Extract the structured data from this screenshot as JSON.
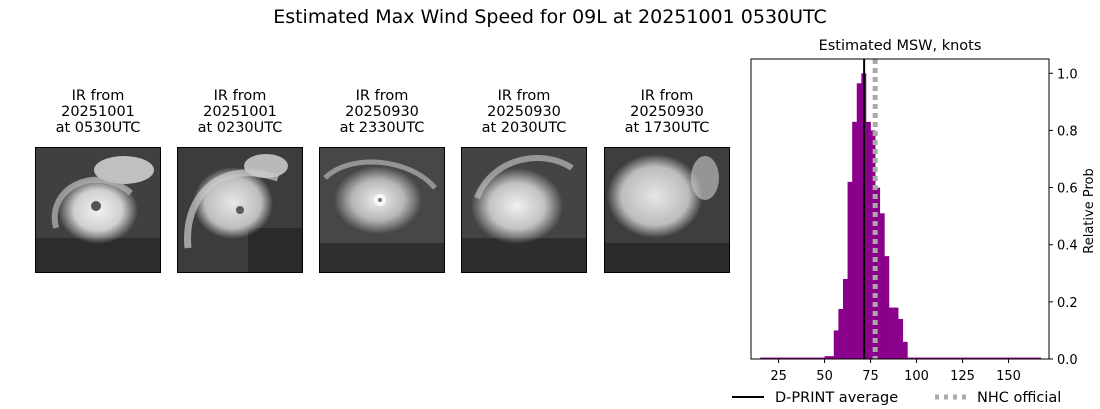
{
  "suptitle": "Estimated Max Wind Speed for 09L at 20251001 0530UTC",
  "ir_panels": [
    {
      "line1": "IR from",
      "line2": "20251001",
      "line3": "at 0530UTC"
    },
    {
      "line1": "IR from",
      "line2": "20251001",
      "line3": "at 0230UTC"
    },
    {
      "line1": "IR from",
      "line2": "20250930",
      "line3": "at 2330UTC"
    },
    {
      "line1": "IR from",
      "line2": "20250930",
      "line3": "at 2030UTC"
    },
    {
      "line1": "IR from",
      "line2": "20250930",
      "line3": "at 1730UTC"
    }
  ],
  "chart_data": {
    "type": "bar",
    "title": "Estimated MSW, knots",
    "xlabel": "",
    "ylabel": "Relative Prob",
    "xlim": [
      10,
      172
    ],
    "ylim": [
      0,
      1.05
    ],
    "xticks": [
      25,
      50,
      75,
      100,
      125,
      150
    ],
    "yticks": [
      "0.0",
      "0.2",
      "0.4",
      "0.6",
      "0.8",
      "1.0"
    ],
    "bin_width": 2.5,
    "bins": [
      {
        "x0": 15,
        "x1": 17.5,
        "value": 0.005
      },
      {
        "x0": 17.5,
        "x1": 20,
        "value": 0.005
      },
      {
        "x0": 20,
        "x1": 22.5,
        "value": 0.005
      },
      {
        "x0": 22.5,
        "x1": 25,
        "value": 0.005
      },
      {
        "x0": 25,
        "x1": 27.5,
        "value": 0.005
      },
      {
        "x0": 27.5,
        "x1": 30,
        "value": 0.005
      },
      {
        "x0": 30,
        "x1": 32.5,
        "value": 0.005
      },
      {
        "x0": 32.5,
        "x1": 35,
        "value": 0.005
      },
      {
        "x0": 35,
        "x1": 37.5,
        "value": 0.005
      },
      {
        "x0": 37.5,
        "x1": 40,
        "value": 0.005
      },
      {
        "x0": 40,
        "x1": 42.5,
        "value": 0.005
      },
      {
        "x0": 42.5,
        "x1": 45,
        "value": 0.005
      },
      {
        "x0": 45,
        "x1": 47.5,
        "value": 0.005
      },
      {
        "x0": 47.5,
        "x1": 50,
        "value": 0.005
      },
      {
        "x0": 50,
        "x1": 52.5,
        "value": 0.01
      },
      {
        "x0": 52.5,
        "x1": 55,
        "value": 0.01
      },
      {
        "x0": 55,
        "x1": 57.5,
        "value": 0.1
      },
      {
        "x0": 57.5,
        "x1": 60,
        "value": 0.175
      },
      {
        "x0": 60,
        "x1": 62.5,
        "value": 0.28
      },
      {
        "x0": 62.5,
        "x1": 65,
        "value": 0.62
      },
      {
        "x0": 65,
        "x1": 67.5,
        "value": 0.83
      },
      {
        "x0": 67.5,
        "x1": 70,
        "value": 0.965
      },
      {
        "x0": 70,
        "x1": 72.5,
        "value": 1.0
      },
      {
        "x0": 72.5,
        "x1": 75,
        "value": 0.83
      },
      {
        "x0": 75,
        "x1": 77.5,
        "value": 0.8
      },
      {
        "x0": 77.5,
        "x1": 80,
        "value": 0.6
      },
      {
        "x0": 80,
        "x1": 82.5,
        "value": 0.51
      },
      {
        "x0": 82.5,
        "x1": 85,
        "value": 0.36
      },
      {
        "x0": 85,
        "x1": 87.5,
        "value": 0.18
      },
      {
        "x0": 87.5,
        "x1": 90,
        "value": 0.18
      },
      {
        "x0": 90,
        "x1": 92.5,
        "value": 0.14
      },
      {
        "x0": 92.5,
        "x1": 95,
        "value": 0.06
      },
      {
        "x0": 95,
        "x1": 97.5,
        "value": 0.005
      },
      {
        "x0": 97.5,
        "x1": 100,
        "value": 0.005
      },
      {
        "x0": 100,
        "x1": 102.5,
        "value": 0.005
      },
      {
        "x0": 102.5,
        "x1": 105,
        "value": 0.005
      },
      {
        "x0": 105,
        "x1": 107.5,
        "value": 0.005
      },
      {
        "x0": 107.5,
        "x1": 110,
        "value": 0.005
      },
      {
        "x0": 110,
        "x1": 112.5,
        "value": 0.005
      },
      {
        "x0": 112.5,
        "x1": 115,
        "value": 0.005
      },
      {
        "x0": 115,
        "x1": 117.5,
        "value": 0.005
      },
      {
        "x0": 117.5,
        "x1": 120,
        "value": 0.005
      },
      {
        "x0": 120,
        "x1": 122.5,
        "value": 0.005
      },
      {
        "x0": 122.5,
        "x1": 125,
        "value": 0.005
      },
      {
        "x0": 125,
        "x1": 127.5,
        "value": 0.005
      },
      {
        "x0": 127.5,
        "x1": 130,
        "value": 0.005
      },
      {
        "x0": 130,
        "x1": 132.5,
        "value": 0.005
      },
      {
        "x0": 132.5,
        "x1": 135,
        "value": 0.005
      },
      {
        "x0": 135,
        "x1": 137.5,
        "value": 0.005
      },
      {
        "x0": 137.5,
        "x1": 140,
        "value": 0.005
      },
      {
        "x0": 140,
        "x1": 142.5,
        "value": 0.005
      },
      {
        "x0": 142.5,
        "x1": 145,
        "value": 0.005
      },
      {
        "x0": 145,
        "x1": 147.5,
        "value": 0.005
      },
      {
        "x0": 147.5,
        "x1": 150,
        "value": 0.005
      },
      {
        "x0": 150,
        "x1": 152.5,
        "value": 0.005
      },
      {
        "x0": 152.5,
        "x1": 155,
        "value": 0.005
      },
      {
        "x0": 155,
        "x1": 157.5,
        "value": 0.005
      },
      {
        "x0": 157.5,
        "x1": 160,
        "value": 0.005
      },
      {
        "x0": 160,
        "x1": 162.5,
        "value": 0.005
      },
      {
        "x0": 162.5,
        "x1": 165,
        "value": 0.005
      },
      {
        "x0": 165,
        "x1": 167.5,
        "value": 0.005
      }
    ],
    "vlines": [
      {
        "name": "D-PRINT average",
        "x": 71.5,
        "color": "#000000",
        "style": "solid"
      },
      {
        "name": "NHC official",
        "x": 77.5,
        "color": "#aaaaaa",
        "style": "dotted"
      }
    ],
    "bar_color": "#8b008b",
    "legend": {
      "placement": "bottom",
      "entries": [
        "D-PRINT average",
        "NHC official"
      ]
    }
  }
}
